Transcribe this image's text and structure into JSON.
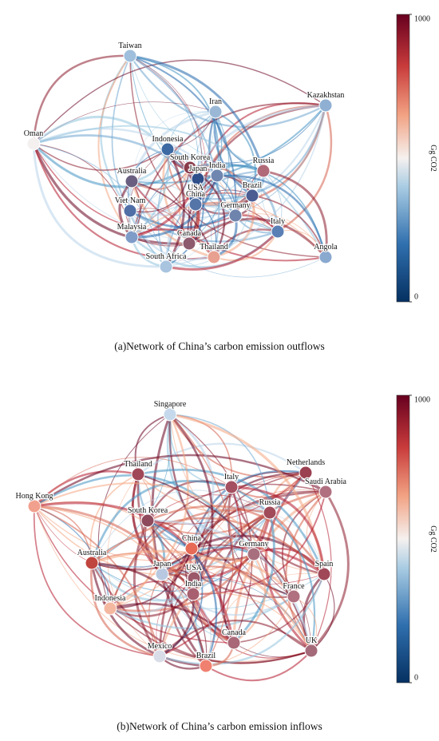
{
  "panels": [
    {
      "caption": "(a)Network of China’s carbon emission outflows",
      "nodes": [
        {
          "label": "Taiwan",
          "color": "#9fbfdc"
        },
        {
          "label": "Oman",
          "color": "#f4f0f0"
        },
        {
          "label": "Iran",
          "color": "#9ab8d6"
        },
        {
          "label": "Kazakhstan",
          "color": "#8fb0d2"
        },
        {
          "label": "Indonesia",
          "color": "#3d6aa3"
        },
        {
          "label": "South Korea",
          "color": "#8a3b4a"
        },
        {
          "label": "Russia",
          "color": "#b06a78"
        },
        {
          "label": "Australia",
          "color": "#6a5f80"
        },
        {
          "label": "Japan",
          "color": "#2f4f8a"
        },
        {
          "label": "India",
          "color": "#6f87b0"
        },
        {
          "label": "Brazil",
          "color": "#4a5c92"
        },
        {
          "label": "Viet Nam",
          "color": "#4f6fa6"
        },
        {
          "label": "USA",
          "color": "#3b5d99"
        },
        {
          "label": "China",
          "color": "#5574a8"
        },
        {
          "label": "Germany",
          "color": "#6f84ad"
        },
        {
          "label": "Italy",
          "color": "#5a7fb5"
        },
        {
          "label": "Malaysia",
          "color": "#7f9cc8"
        },
        {
          "label": "Canada",
          "color": "#8d5a6e"
        },
        {
          "label": "Thailand",
          "color": "#e8a090"
        },
        {
          "label": "South Africa",
          "color": "#a8c4df"
        },
        {
          "label": "Angola",
          "color": "#8aa9cf"
        }
      ],
      "colorbar": {
        "label": "Gg CO2",
        "lim": [
          0,
          1000
        ],
        "ticks": [
          0,
          1000
        ]
      }
    },
    {
      "caption": "(b)Network of China’s carbon emission inflows",
      "nodes": [
        {
          "label": "Singapore",
          "color": "#c6d9ec"
        },
        {
          "label": "Hong Kong",
          "color": "#f2a08e"
        },
        {
          "label": "Thailand",
          "color": "#a04858"
        },
        {
          "label": "Netherlands",
          "color": "#9a4050"
        },
        {
          "label": "Italy",
          "color": "#a55060"
        },
        {
          "label": "Saudi Arabia",
          "color": "#b07080"
        },
        {
          "label": "Russia",
          "color": "#a04a5a"
        },
        {
          "label": "South Korea",
          "color": "#8e4a5c"
        },
        {
          "label": "China",
          "color": "#e66a55"
        },
        {
          "label": "Germany",
          "color": "#a8707e"
        },
        {
          "label": "Australia",
          "color": "#c0453e"
        },
        {
          "label": "Japan",
          "color": "#b8c8e0"
        },
        {
          "label": "USA",
          "color": "#9a5868"
        },
        {
          "label": "Spain",
          "color": "#a04858"
        },
        {
          "label": "India",
          "color": "#a86070"
        },
        {
          "label": "France",
          "color": "#b07080"
        },
        {
          "label": "Indonesia",
          "color": "#f4b8a0"
        },
        {
          "label": "Canada",
          "color": "#a86878"
        },
        {
          "label": "UK",
          "color": "#a46a7a"
        },
        {
          "label": "Mexico",
          "color": "#d8dde8"
        },
        {
          "label": "Brazil",
          "color": "#f08070"
        }
      ],
      "colorbar": {
        "label": "Gg CO2",
        "lim": [
          0,
          1000
        ],
        "ticks": [
          0,
          1000
        ]
      }
    }
  ]
}
